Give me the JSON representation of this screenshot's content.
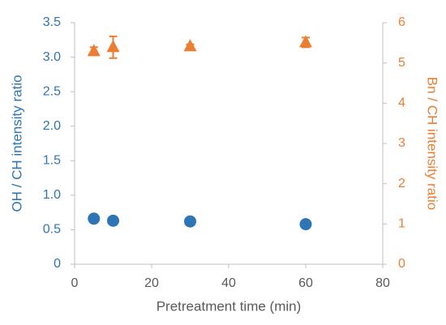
{
  "chart_data": {
    "type": "scatter",
    "xlabel": "Pretreatment time (min)",
    "ylabel": "OH / CH intensity ratio",
    "y2label": "Bn / CH intensity ratio",
    "x": [
      5,
      10,
      30,
      60
    ],
    "xlim": [
      0,
      80
    ],
    "xticks": [
      0,
      20,
      40,
      60,
      80
    ],
    "ylim": [
      0,
      3.5
    ],
    "yticks": [
      0,
      0.5,
      {
        "value": 1,
        "label": "1.0"
      },
      1.5,
      {
        "value": 2,
        "label": "2.0"
      },
      2.5,
      {
        "value": 3,
        "label": "3.0"
      },
      3.5
    ],
    "y2lim": [
      0,
      6
    ],
    "y2ticks": [
      0,
      1,
      2,
      3,
      4,
      5,
      6
    ],
    "series": [
      {
        "color": "#2e75b6",
        "marker": "circle",
        "values": [
          0.66,
          0.63,
          0.62,
          0.58
        ],
        "errors": [
          0.03,
          0.04,
          0.02,
          0.02
        ]
      },
      {
        "color": "#ed7d31",
        "marker": "triangle",
        "axis": "y2",
        "values": [
          5.29,
          5.39,
          5.41,
          5.51
        ],
        "errors": [
          0.1,
          0.27,
          0.05,
          0.12
        ]
      }
    ]
  }
}
